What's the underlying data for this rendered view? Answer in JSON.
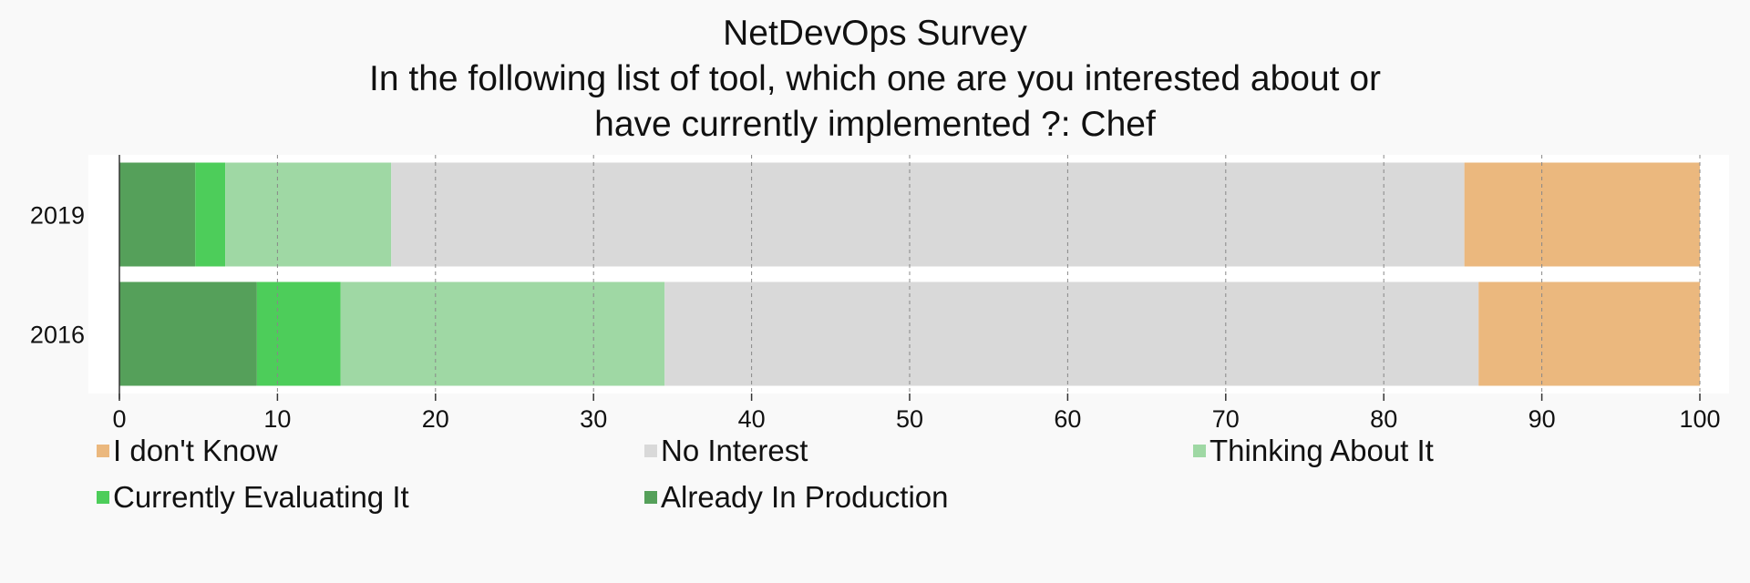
{
  "chart_data": {
    "type": "bar",
    "orientation": "horizontal",
    "stacked": true,
    "title": [
      "NetDevOps Survey",
      "In the following list of tool, which one are you interested about or",
      "have currently implemented ?: Chef"
    ],
    "categories": [
      "2019",
      "2016"
    ],
    "series": [
      {
        "name": "Already In Production",
        "color": "#55a05a",
        "values": [
          4.8,
          8.7
        ]
      },
      {
        "name": "Currently Evaluating It",
        "color": "#4dcd5a",
        "values": [
          1.9,
          5.3
        ]
      },
      {
        "name": "Thinking About It",
        "color": "#9fd8a4",
        "values": [
          10.5,
          20.5
        ]
      },
      {
        "name": "No Interest",
        "color": "#d9d9d9",
        "values": [
          67.9,
          51.5
        ]
      },
      {
        "name": "I don't Know",
        "color": "#ebb87e",
        "values": [
          14.9,
          14.0
        ]
      }
    ],
    "xlim": [
      0,
      100
    ],
    "xticks": [
      "0",
      "10",
      "20",
      "30",
      "40",
      "50",
      "60",
      "70",
      "80",
      "90",
      "100"
    ],
    "grid": true,
    "legend_order": [
      "I don't Know",
      "No Interest",
      "Thinking About It",
      "Currently Evaluating It",
      "Already In Production"
    ],
    "legend_placement": "bottom"
  }
}
